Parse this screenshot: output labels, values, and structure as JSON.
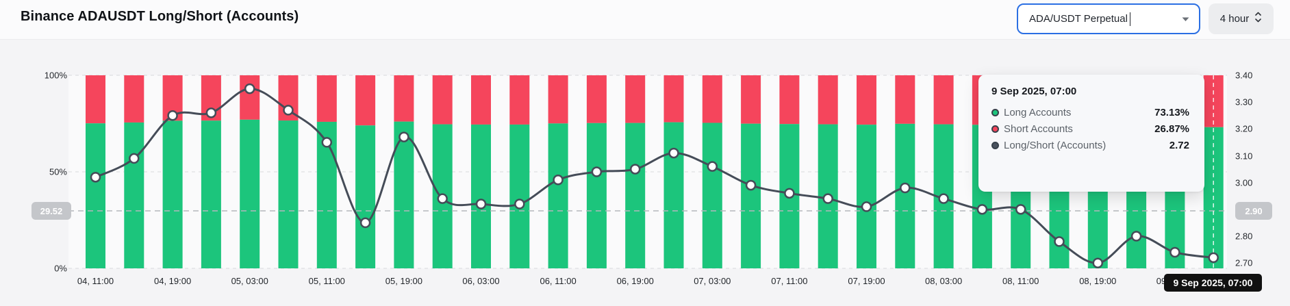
{
  "header": {
    "title": "Binance ADAUSDT Long/Short (Accounts)"
  },
  "controls": {
    "symbol_select": {
      "value": "ADA/USDT Perpetual"
    },
    "interval_select": {
      "value": "4 hour"
    }
  },
  "colors": {
    "long_green": "#1CC57C",
    "short_red": "#F5455C",
    "ratio_line": "#454C58",
    "accent_blue": "#2B6FE3",
    "crosshair_badge_gray": "#C4C6CA",
    "crosshair_bottom_black": "#111111"
  },
  "chart_data": {
    "type": "bar",
    "subtype": "stacked-percent bars with ratio line overlay",
    "title": "Binance ADAUSDT Long/Short (Accounts)",
    "bar_interval": "4 hour",
    "categories": [
      "04, 11:00",
      "04, 19:00",
      "05, 03:00",
      "05, 11:00",
      "05, 19:00",
      "06, 03:00",
      "06, 11:00",
      "06, 19:00",
      "07, 03:00",
      "07, 11:00",
      "07, 19:00",
      "08, 03:00",
      "08, 11:00",
      "08, 19:00",
      "09, 03:00"
    ],
    "note_x": "x tick labels appear under every second bar; 30 bars total ending 9 Sep 2025, 07:00",
    "series": [
      {
        "name": "Long Accounts",
        "color": "#1CC57C",
        "values": [
          75.12,
          75.55,
          76.47,
          76.53,
          77.01,
          76.58,
          75.9,
          74.03,
          76.02,
          74.62,
          74.49,
          74.49,
          75.06,
          75.25,
          75.31,
          75.67,
          75.37,
          74.94,
          74.75,
          74.62,
          74.42,
          74.87,
          74.62,
          74.36,
          74.36,
          73.54,
          72.97,
          73.68,
          73.26,
          73.13
        ]
      },
      {
        "name": "Short Accounts",
        "color": "#F5455C",
        "values": [
          24.88,
          24.45,
          23.53,
          23.47,
          22.99,
          23.42,
          24.1,
          25.97,
          23.98,
          25.38,
          25.51,
          25.51,
          24.94,
          24.75,
          24.69,
          24.33,
          24.63,
          25.06,
          25.25,
          25.38,
          25.58,
          25.13,
          25.38,
          25.64,
          25.64,
          26.46,
          27.03,
          26.32,
          26.74,
          26.87
        ]
      },
      {
        "name": "Long/Short (Accounts)",
        "color": "#454C58",
        "values": [
          3.02,
          3.09,
          3.25,
          3.26,
          3.35,
          3.27,
          3.15,
          2.85,
          3.17,
          2.94,
          2.92,
          2.92,
          3.01,
          3.04,
          3.05,
          3.11,
          3.06,
          2.99,
          2.96,
          2.94,
          2.91,
          2.98,
          2.94,
          2.9,
          2.9,
          2.78,
          2.7,
          2.8,
          2.74,
          2.72
        ]
      }
    ],
    "left_axis": {
      "ticks": [
        "100%",
        "50%",
        "0%"
      ],
      "range": [
        0,
        100
      ],
      "grid": "dashed"
    },
    "right_axis": {
      "ticks": [
        "3.40",
        "3.30",
        "3.20",
        "3.10",
        "3.00",
        "2.90",
        "2.80",
        "2.70"
      ],
      "range": [
        2.7,
        3.4
      ]
    },
    "legend_position": "none (legend shown in hover tooltip)"
  },
  "crosshair": {
    "left_label": "29.52",
    "right_label": "2.90",
    "bottom_label": "9 Sep 2025, 07:00"
  },
  "tooltip": {
    "title": "9 Sep 2025, 07:00",
    "rows": [
      {
        "label": "Long Accounts",
        "value": "73.13%",
        "color": "#1CC57C"
      },
      {
        "label": "Short Accounts",
        "value": "26.87%",
        "color": "#F5455C"
      },
      {
        "label": "Long/Short (Accounts)",
        "value": "2.72",
        "color": "#4A525E"
      }
    ]
  }
}
